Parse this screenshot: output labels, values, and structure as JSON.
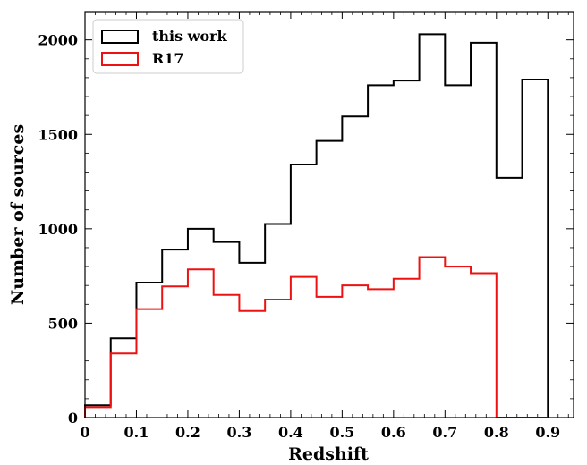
{
  "chart_data": {
    "type": "histogram",
    "xlabel": "Redshift",
    "ylabel": "Number of sources",
    "xlim": [
      0,
      0.95
    ],
    "ylim": [
      0,
      2150
    ],
    "x_ticks": [
      0,
      0.1,
      0.2,
      0.3,
      0.4,
      0.5,
      0.6,
      0.7,
      0.8,
      0.9
    ],
    "x_tick_labels": [
      "0",
      "0.1",
      "0.2",
      "0.3",
      "0.4",
      "0.5",
      "0.6",
      "0.7",
      "0.8",
      "0.9"
    ],
    "y_ticks": [
      0,
      500,
      1000,
      1500,
      2000
    ],
    "y_tick_labels": [
      "0",
      "500",
      "1000",
      "1500",
      "2000"
    ],
    "bin_edges": [
      0,
      0.05,
      0.1,
      0.15,
      0.2,
      0.25,
      0.3,
      0.35,
      0.4,
      0.45,
      0.5,
      0.55,
      0.6,
      0.65,
      0.7,
      0.75,
      0.8,
      0.85,
      0.9
    ],
    "series": [
      {
        "name": "this work",
        "color": "#000000",
        "values": [
          65,
          420,
          715,
          890,
          1000,
          930,
          820,
          1025,
          1340,
          1465,
          1595,
          1760,
          1785,
          2030,
          1760,
          1985,
          1270,
          1790
        ]
      },
      {
        "name": "R17",
        "color": "#ee1111",
        "values": [
          55,
          340,
          575,
          695,
          785,
          650,
          565,
          625,
          745,
          640,
          700,
          680,
          735,
          850,
          800,
          765,
          0,
          0
        ]
      }
    ],
    "legend_position": "top-left",
    "grid": false
  }
}
